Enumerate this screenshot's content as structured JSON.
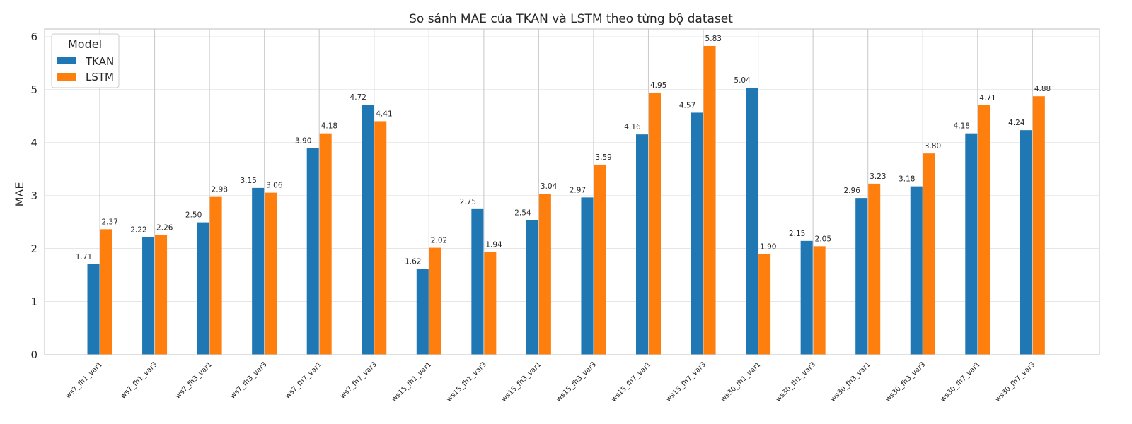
{
  "chart_data": {
    "type": "bar",
    "title": "So sánh MAE của TKAN và LSTM theo từng bộ dataset",
    "xlabel": "",
    "ylabel": "MAE",
    "ylim": [
      0,
      6.15
    ],
    "yticks": [
      0,
      1,
      2,
      3,
      4,
      5,
      6
    ],
    "grid": true,
    "legend": {
      "title": "Model",
      "placement": "top-left"
    },
    "categories": [
      "ws7_fh1_var1",
      "ws7_fh1_var3",
      "ws7_fh3_var1",
      "ws7_fh3_var3",
      "ws7_fh7_var1",
      "ws7_fh7_var3",
      "ws15_fh1_var1",
      "ws15_fh1_var3",
      "ws15_fh3_var1",
      "ws15_fh3_var3",
      "ws15_fh7_var1",
      "ws15_fh7_var3",
      "ws30_fh1_var1",
      "ws30_fh1_var3",
      "ws30_fh3_var1",
      "ws30_fh3_var3",
      "ws30_fh7_var1",
      "ws30_fh7_var3"
    ],
    "series": [
      {
        "name": "TKAN",
        "color": "#1f77b4",
        "values": [
          1.71,
          2.22,
          2.5,
          3.15,
          3.9,
          4.72,
          1.62,
          2.75,
          2.54,
          2.97,
          4.16,
          4.57,
          5.04,
          2.15,
          2.96,
          3.18,
          4.18,
          4.24
        ],
        "labels": [
          "1.71",
          "2.22",
          "2.50",
          "3.15",
          "3.90",
          "4.72",
          "1.62",
          "2.75",
          "2.54",
          "2.97",
          "4.16",
          "4.57",
          "5.04",
          "2.15",
          "2.96",
          "3.18",
          "4.18",
          "4.24"
        ]
      },
      {
        "name": "LSTM",
        "color": "#ff7f0e",
        "values": [
          2.37,
          2.26,
          2.98,
          3.06,
          4.18,
          4.41,
          2.02,
          1.94,
          3.04,
          3.59,
          4.95,
          5.83,
          1.9,
          2.05,
          3.23,
          3.8,
          4.71,
          4.88
        ],
        "labels": [
          "2.37",
          "2.26",
          "2.98",
          "3.06",
          "4.18",
          "4.41",
          "2.02",
          "1.94",
          "3.04",
          "3.59",
          "4.95",
          "5.83",
          "1.90",
          "2.05",
          "3.23",
          "3.80",
          "4.71",
          "4.88"
        ]
      }
    ]
  }
}
